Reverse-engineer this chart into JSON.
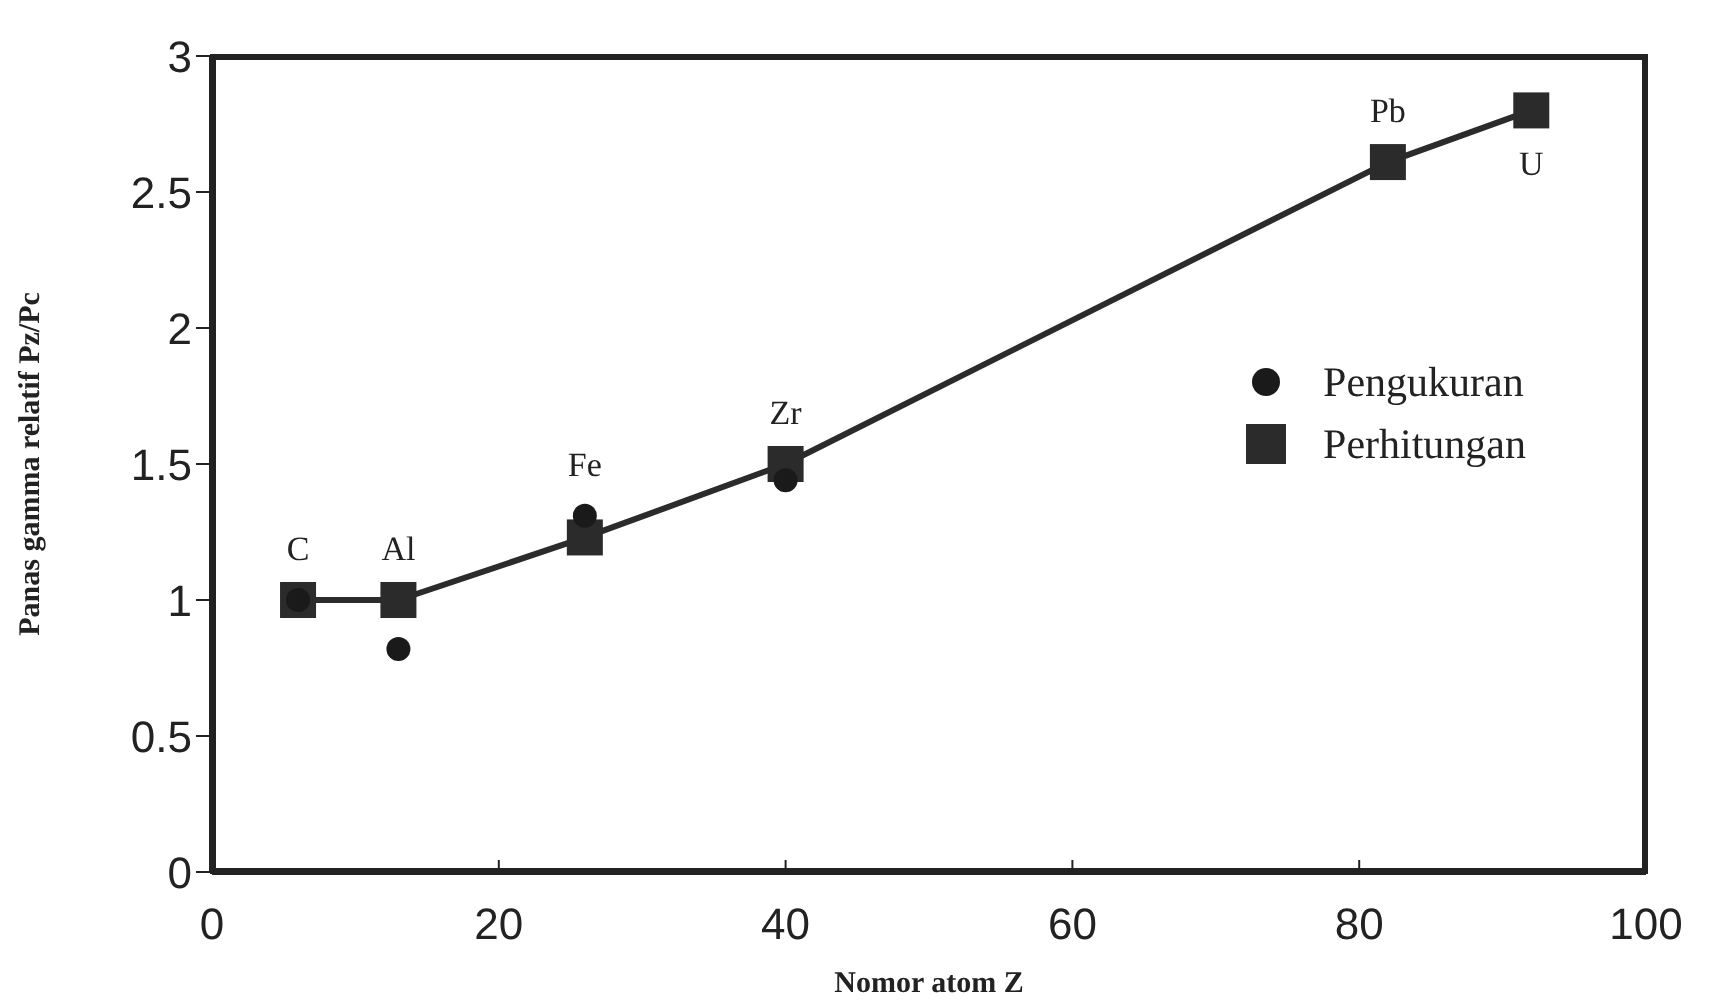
{
  "chart_data": {
    "type": "line",
    "xlabel": "Nomor atom Z",
    "ylabel": "Panas gamma relatif Pz/Pc",
    "x": [
      6,
      13,
      26,
      40,
      82,
      92
    ],
    "series": [
      {
        "name": "Pengukuran",
        "type": "scatter",
        "color": "#1a1a1a",
        "marker": "circle",
        "values": [
          1.0,
          0.82,
          1.31,
          1.44,
          null,
          null
        ]
      },
      {
        "name": "Perhitungan",
        "color": "#2b2b2b",
        "marker": "square",
        "values": [
          1.0,
          1.0,
          1.23,
          1.5,
          2.61,
          2.8
        ]
      }
    ],
    "xlim": [
      0,
      100
    ],
    "xticks": [
      0,
      20,
      40,
      60,
      80,
      100
    ],
    "ylim": [
      0,
      3
    ],
    "yticks": [
      0,
      0.5,
      1,
      1.5,
      2,
      2.5,
      3
    ],
    "grid": false,
    "legend": "right",
    "annotations": [
      {
        "text": "C",
        "x": 6,
        "y": 1.0
      },
      {
        "text": "Al",
        "x": 13,
        "y": 1.0
      },
      {
        "text": "Fe",
        "x": 26,
        "y": 1.31
      },
      {
        "text": "Zr",
        "x": 40,
        "y": 1.5
      },
      {
        "text": "Pb",
        "x": 82,
        "y": 2.61
      },
      {
        "text": "U",
        "x": 92,
        "y": 2.8
      }
    ]
  }
}
